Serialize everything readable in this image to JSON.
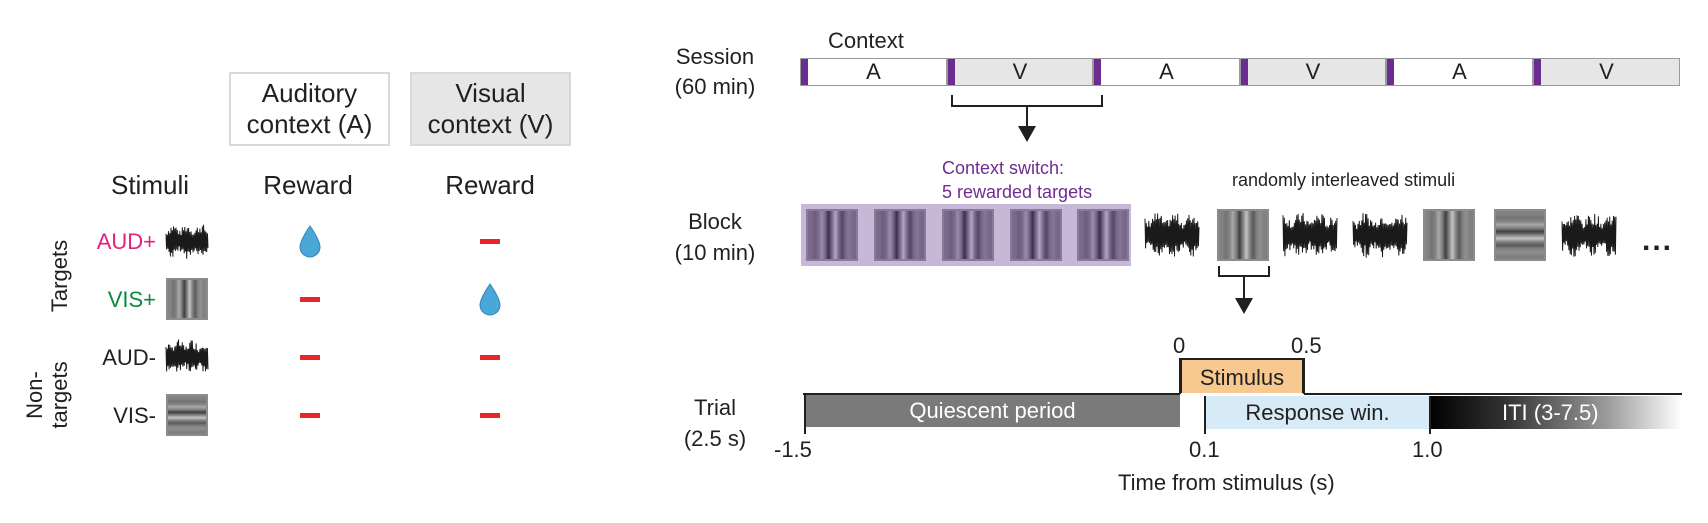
{
  "colors": {
    "aud_plus": "#e3207e",
    "vis_plus": "#0b8a3e",
    "context_switch": "#6f2c91",
    "divider": "#6b2c91",
    "reward_drop": "#4aa8d8",
    "no_reward": "#e8262a",
    "stimulus_fill": "#f7c88f",
    "response_fill": "#d6ebf5",
    "quiescent_fill": "#7a7a7a"
  },
  "left_panel": {
    "auditory_context": {
      "line1": "Auditory",
      "line2": "context (A)"
    },
    "visual_context": {
      "line1": "Visual",
      "line2": "context (V)"
    },
    "col_stimuli": "Stimuli",
    "col_reward_a": "Reward",
    "col_reward_v": "Reward",
    "group_targets": "Targets",
    "group_nontargets_line1": "Non-",
    "group_nontargets_line2": "targets",
    "rows": [
      {
        "label": "AUD+",
        "stim": "auditory-noise",
        "reward_a": "drop",
        "reward_v": "dash"
      },
      {
        "label": "VIS+",
        "stim": "vertical-grating",
        "reward_a": "dash",
        "reward_v": "drop"
      },
      {
        "label": "AUD-",
        "stim": "auditory-noise",
        "reward_a": "dash",
        "reward_v": "dash"
      },
      {
        "label": "VIS-",
        "stim": "horizontal-grating",
        "reward_a": "dash",
        "reward_v": "dash"
      }
    ]
  },
  "session": {
    "label_line1": "Session",
    "label_line2": "(60 min)",
    "context_title": "Context",
    "blocks": [
      "A",
      "V",
      "A",
      "V",
      "A",
      "V"
    ]
  },
  "block": {
    "label_line1": "Block",
    "label_line2": "(10 min)",
    "switch_line1": "Context switch:",
    "switch_line2": "5 rewarded targets",
    "interleaved": "randomly interleaved stimuli",
    "ellipsis": "...",
    "sequence": [
      "vertical-grating",
      "vertical-grating",
      "vertical-grating",
      "vertical-grating",
      "vertical-grating",
      "auditory-noise",
      "vertical-grating",
      "auditory-noise",
      "auditory-noise",
      "vertical-grating",
      "horizontal-grating",
      "auditory-noise"
    ]
  },
  "trial": {
    "label_line1": "Trial",
    "label_line2": "(2.5 s)",
    "stimulus": "Stimulus",
    "quiescent": "Quiescent period",
    "response": "Response win.",
    "iti": "ITI (3-7.5)",
    "tick_0": "0",
    "tick_05": "0.5",
    "tick_neg15": "-1.5",
    "tick_01": "0.1",
    "tick_10": "1.0",
    "xlabel": "Time from stimulus (s)"
  }
}
